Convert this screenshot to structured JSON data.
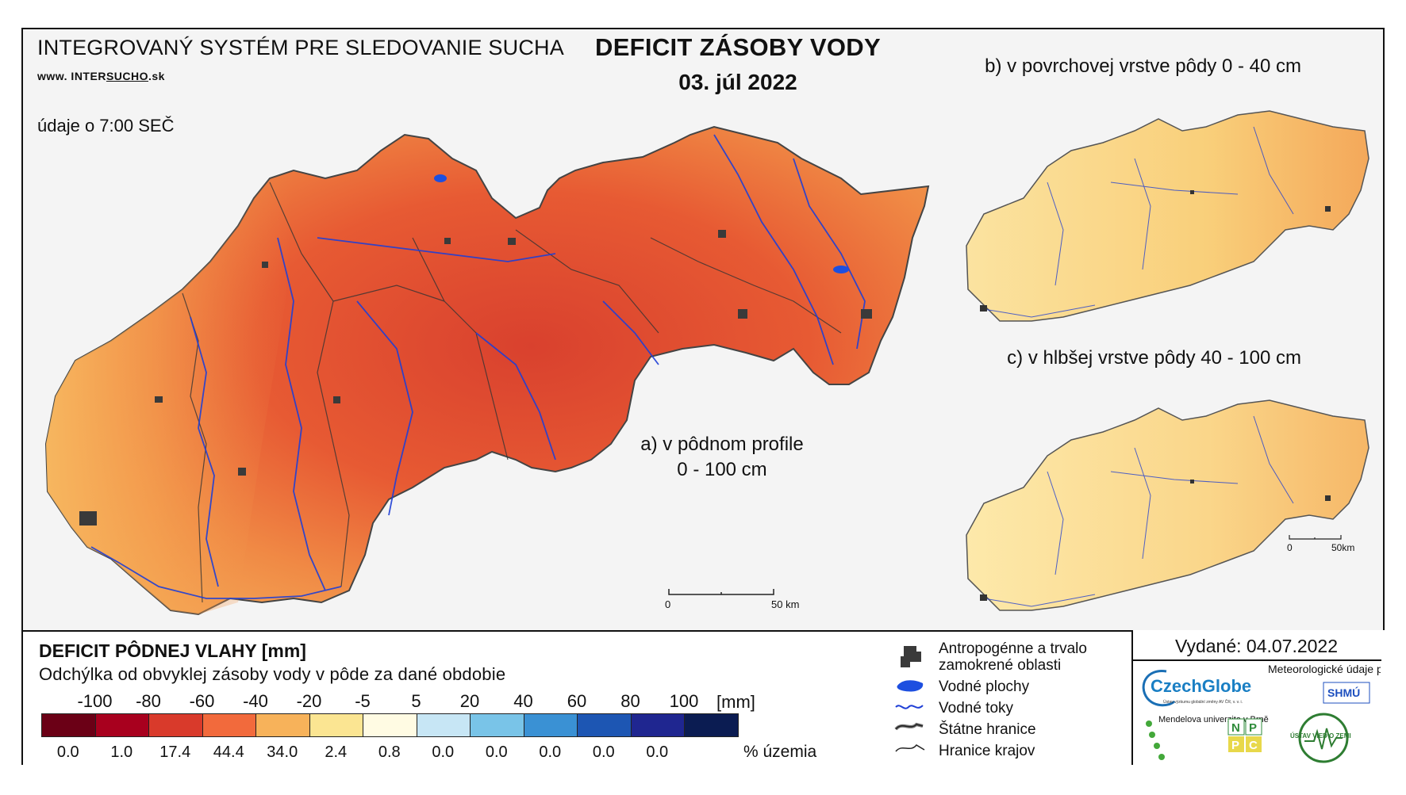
{
  "header": {
    "system_title": "INTEGROVANÝ SYSTÉM PRE SLEDOVANIE SUCHA",
    "url_prefix": "www. INTER",
    "url_mid": "SUCHO",
    "url_suffix": ".sk",
    "time_note": "údaje o 7:00 SEČ",
    "title": "DEFICIT ZÁSOBY VODY",
    "date": "03. júl 2022"
  },
  "maps": {
    "a_label_line1": "a) v pôdnom profile",
    "a_label_line2": "0 - 100 cm",
    "b_label": "b) v povrchovej vrstve pôdy 0 - 40 cm",
    "c_label": "c) v hlbšej vrstve pôdy 40 - 100 cm",
    "scalebar_main_0": "0",
    "scalebar_main_50": "50 km",
    "scalebar_small_0": "0",
    "scalebar_small_50": "50km"
  },
  "legend": {
    "title": "DEFICIT PÔDNEJ VLAHY [mm]",
    "subtitle": "Odchýlka od obvyklej zásoby vody v pôde za dané obdobie",
    "unit": "[mm]",
    "pct_label": "% územia",
    "class_labels": [
      "-100",
      "-80",
      "-60",
      "-40",
      "-20",
      "-5",
      "5",
      "20",
      "40",
      "60",
      "80",
      "100"
    ],
    "colors": [
      "#6b0016",
      "#a8001e",
      "#d93a2b",
      "#f26a3c",
      "#f7b25a",
      "#fbe592",
      "#fffbe3",
      "#c7e6f5",
      "#79c4e8",
      "#3a91d4",
      "#1d56b3",
      "#1f2690",
      "#0b1c52"
    ],
    "percent_values": [
      "0.0",
      "1.0",
      "17.4",
      "44.4",
      "34.0",
      "2.4",
      "0.8",
      "0.0",
      "0.0",
      "0.0",
      "0.0",
      "0.0"
    ]
  },
  "symbols": {
    "urban": "Antropogénne a trvalo zamokrené oblasti",
    "water_bodies": "Vodné plochy",
    "rivers": "Vodné toky",
    "state_border": "Štátne hranice",
    "region_border": "Hranice krajov"
  },
  "issued": {
    "label": "Vydané: 04.07.2022",
    "czechglobe": "CzechGlobe",
    "czechglobe_sub": "Ústav výzkumu globální změny AV ČR, v. v. i.",
    "met_data": "Meteorologické údaje poskytuje:",
    "shmu": "SHMÚ",
    "mendel": "Mendelova univerzita v Brně",
    "nppc": [
      "N",
      "P",
      "P",
      "C"
    ],
    "uvz": "ÚSTAV VIED O ZEMI"
  }
}
